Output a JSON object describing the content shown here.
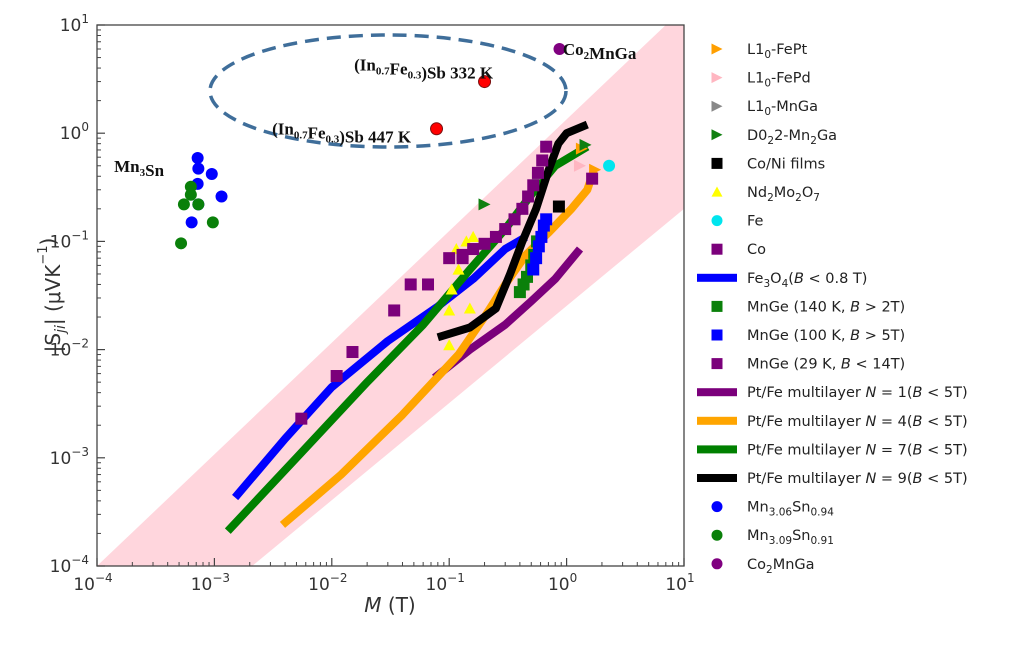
{
  "chart_data": {
    "type": "scatter",
    "title": "",
    "xlabel": "M (T)",
    "ylabel": "|S_ji| (μVK⁻¹)",
    "xscale": "log",
    "yscale": "log",
    "xlim": [
      0.0001,
      10
    ],
    "ylim": [
      0.0001,
      10
    ],
    "x_ticks": [
      {
        "value": 0.0001,
        "base": "10",
        "exp": "−4"
      },
      {
        "value": 0.001,
        "base": "10",
        "exp": "−3"
      },
      {
        "value": 0.01,
        "base": "10",
        "exp": "−2"
      },
      {
        "value": 0.1,
        "base": "10",
        "exp": "−1"
      },
      {
        "value": 1,
        "base": "10",
        "exp": "0"
      },
      {
        "value": 10,
        "base": "10",
        "exp": "1"
      }
    ],
    "y_ticks": [
      {
        "value": 0.0001,
        "base": "10",
        "exp": "−4"
      },
      {
        "value": 0.001,
        "base": "10",
        "exp": "−3"
      },
      {
        "value": 0.01,
        "base": "10",
        "exp": "−2"
      },
      {
        "value": 0.1,
        "base": "10",
        "exp": "−1"
      },
      {
        "value": 1,
        "base": "10",
        "exp": "0"
      },
      {
        "value": 10,
        "base": "10",
        "exp": "1"
      }
    ],
    "grid": false,
    "legend_position": "outside-right",
    "band": {
      "color": "#ffd6dd",
      "upper": [
        [
          0.0001,
          0.0001
        ],
        [
          7.0,
          10
        ]
      ],
      "lower": [
        [
          0.0021,
          0.0001
        ],
        [
          10,
          0.2
        ]
      ]
    },
    "series": [
      {
        "name": "L1₀-FePt",
        "marker": "triangle-right",
        "color": "#ff9f00",
        "points": [
          [
            1.35,
            0.72
          ],
          [
            1.75,
            0.46
          ]
        ]
      },
      {
        "name": "L1₀-FePd",
        "marker": "triangle-right",
        "color": "#ffb6c1",
        "points": [
          [
            1.3,
            0.5
          ]
        ]
      },
      {
        "name": "L1₀-MnGa",
        "marker": "triangle-right",
        "color": "#888888",
        "points": [
          [
            0.57,
            0.39
          ]
        ]
      },
      {
        "name": "D0₂ 2-Mn₂Ga",
        "marker": "triangle-right",
        "color": "#108010",
        "points": [
          [
            0.2,
            0.22
          ],
          [
            1.45,
            0.78
          ]
        ]
      },
      {
        "name": "Co/Ni films",
        "marker": "square",
        "color": "#000000",
        "points": [
          [
            0.86,
            0.21
          ]
        ]
      },
      {
        "name": "Nd₂Mo₂O₇",
        "marker": "triangle-up",
        "color": "#ffff00",
        "points": [
          [
            0.1,
            0.011
          ],
          [
            0.1,
            0.023
          ],
          [
            0.105,
            0.036
          ],
          [
            0.12,
            0.055
          ],
          [
            0.15,
            0.024
          ],
          [
            0.115,
            0.085
          ],
          [
            0.14,
            0.1
          ],
          [
            0.16,
            0.11
          ]
        ]
      },
      {
        "name": "Fe",
        "marker": "circle",
        "color": "#00e5ee",
        "points": [
          [
            2.3,
            0.5
          ]
        ]
      },
      {
        "name": "Co",
        "marker": "square",
        "color": "#7b007b",
        "points": [
          [
            0.0055,
            0.0023
          ],
          [
            0.011,
            0.0057
          ],
          [
            0.015,
            0.0095
          ],
          [
            0.034,
            0.023
          ],
          [
            0.047,
            0.04
          ],
          [
            0.066,
            0.04
          ],
          [
            0.1,
            0.07
          ],
          [
            0.13,
            0.07
          ],
          [
            1.65,
            0.38
          ]
        ]
      },
      {
        "name": "Fe₃O₄(B < 0.8 T)",
        "type": "line",
        "color": "#0000ff",
        "points": [
          [
            0.0015,
            0.00043
          ],
          [
            0.004,
            0.0015
          ],
          [
            0.01,
            0.0045
          ],
          [
            0.03,
            0.012
          ],
          [
            0.08,
            0.025
          ],
          [
            0.16,
            0.045
          ],
          [
            0.3,
            0.085
          ],
          [
            0.45,
            0.11
          ]
        ]
      },
      {
        "name": "MnGe (140 K, B > 2T)",
        "marker": "square",
        "color": "#0a800a",
        "points": [
          [
            0.4,
            0.034
          ],
          [
            0.43,
            0.04
          ],
          [
            0.46,
            0.047
          ],
          [
            0.5,
            0.06
          ],
          [
            0.53,
            0.075
          ],
          [
            0.56,
            0.1
          ]
        ]
      },
      {
        "name": "MnGe (100 K, B > 5T)",
        "marker": "square",
        "color": "#0000ff",
        "points": [
          [
            0.52,
            0.055
          ],
          [
            0.55,
            0.07
          ],
          [
            0.58,
            0.09
          ],
          [
            0.61,
            0.11
          ],
          [
            0.64,
            0.14
          ],
          [
            0.67,
            0.16
          ]
        ]
      },
      {
        "name": "MnGe (29 K, B < 14T)",
        "marker": "square",
        "color": "#7b007b",
        "points": [
          [
            0.13,
            0.075
          ],
          [
            0.16,
            0.085
          ],
          [
            0.2,
            0.095
          ],
          [
            0.25,
            0.11
          ],
          [
            0.3,
            0.13
          ],
          [
            0.36,
            0.16
          ],
          [
            0.42,
            0.2
          ],
          [
            0.47,
            0.26
          ],
          [
            0.52,
            0.33
          ],
          [
            0.57,
            0.43
          ],
          [
            0.62,
            0.56
          ],
          [
            0.67,
            0.75
          ]
        ]
      },
      {
        "name": "Pt/Fe multilayer N = 1(B < 5T)",
        "type": "line",
        "color": "#7b007b",
        "points": [
          [
            0.075,
            0.0055
          ],
          [
            0.15,
            0.01
          ],
          [
            0.3,
            0.017
          ],
          [
            0.5,
            0.028
          ],
          [
            0.8,
            0.045
          ],
          [
            1.3,
            0.085
          ]
        ]
      },
      {
        "name": "Pt/Fe multilayer N = 4(B < 5T)",
        "type": "line",
        "color": "#ffa500",
        "points": [
          [
            0.0038,
            0.00024
          ],
          [
            0.012,
            0.0007
          ],
          [
            0.04,
            0.0025
          ],
          [
            0.12,
            0.009
          ],
          [
            0.2,
            0.02
          ],
          [
            0.3,
            0.04
          ],
          [
            0.45,
            0.075
          ],
          [
            0.7,
            0.12
          ],
          [
            1.1,
            0.2
          ],
          [
            1.5,
            0.3
          ],
          [
            1.7,
            0.45
          ]
        ]
      },
      {
        "name": "Pt/Fe multilayer N = 7(B < 5T)",
        "type": "line",
        "color": "#008000",
        "points": [
          [
            0.0013,
            0.00021
          ],
          [
            0.005,
            0.001
          ],
          [
            0.02,
            0.005
          ],
          [
            0.06,
            0.017
          ],
          [
            0.15,
            0.055
          ],
          [
            0.3,
            0.13
          ],
          [
            0.5,
            0.27
          ],
          [
            0.8,
            0.5
          ],
          [
            1.5,
            0.75
          ]
        ]
      },
      {
        "name": "Pt/Fe multilayer N = 9(B < 5T)",
        "type": "line",
        "color": "#000000",
        "points": [
          [
            0.08,
            0.013
          ],
          [
            0.15,
            0.016
          ],
          [
            0.25,
            0.024
          ],
          [
            0.33,
            0.05
          ],
          [
            0.42,
            0.1
          ],
          [
            0.55,
            0.2
          ],
          [
            0.7,
            0.45
          ],
          [
            0.85,
            0.8
          ],
          [
            1.0,
            1.0
          ],
          [
            1.5,
            1.2
          ]
        ]
      },
      {
        "name": "Mn₃.₀₆Sn₀.₉₄",
        "marker": "circle",
        "color": "#0000ff",
        "points": [
          [
            0.00072,
            0.59
          ],
          [
            0.00073,
            0.47
          ],
          [
            0.00095,
            0.42
          ],
          [
            0.00072,
            0.34
          ],
          [
            0.00115,
            0.26
          ],
          [
            0.00073,
            0.22
          ],
          [
            0.00064,
            0.15
          ]
        ]
      },
      {
        "name": "Mn₃.₀₉Sn₀.₉₁",
        "marker": "circle",
        "color": "#0a800a",
        "points": [
          [
            0.00063,
            0.32
          ],
          [
            0.00063,
            0.27
          ],
          [
            0.00055,
            0.22
          ],
          [
            0.00073,
            0.22
          ],
          [
            0.00097,
            0.15
          ],
          [
            0.00052,
            0.096
          ]
        ]
      },
      {
        "name": "Co₂MnGa",
        "marker": "circle",
        "color": "#800080",
        "points": [
          [
            0.87,
            6.0
          ]
        ]
      },
      {
        "name": "(In0.7Fe0.3)Sb",
        "marker": "circle",
        "color": "#ff0000",
        "in_legend": false,
        "points": [
          [
            0.2,
            3.0
          ],
          [
            0.078,
            1.1
          ]
        ]
      }
    ],
    "annotations": [
      {
        "text": "Mn",
        "sub": "3",
        "text2": "Sn",
        "sub2": "",
        "text3": "",
        "x": 0.00014,
        "y": 0.5
      },
      {
        "text": "(In",
        "sub": "0.7",
        "text2": "Fe",
        "sub2": "0.3",
        "text3": ")Sb 332 K",
        "x": 0.0155,
        "y": 4.3
      },
      {
        "text": "(In",
        "sub": "0.7",
        "text2": "Fe",
        "sub2": "0.3",
        "text3": ")Sb 447 K",
        "x": 0.0031,
        "y": 1.1
      },
      {
        "text": "Co",
        "sub": "2",
        "text2": "MnGa",
        "sub2": "",
        "text3": "",
        "x": 0.93,
        "y": 6.0
      }
    ],
    "ellipse": {
      "center": [
        0.027,
        2.2
      ],
      "color": "#3f6e9a",
      "style": "dashed"
    }
  },
  "legend": [
    {
      "kind": "triangle-right",
      "color": "#ff9f00",
      "parts": [
        [
          "L1",
          ""
        ],
        [
          "0",
          "sub"
        ],
        [
          "-FePt",
          ""
        ]
      ]
    },
    {
      "kind": "triangle-right",
      "color": "#ffb6c1",
      "parts": [
        [
          "L1",
          ""
        ],
        [
          "0",
          "sub"
        ],
        [
          "-FePd",
          ""
        ]
      ]
    },
    {
      "kind": "triangle-right",
      "color": "#888888",
      "parts": [
        [
          "L1",
          ""
        ],
        [
          "0",
          "sub"
        ],
        [
          "-MnGa",
          ""
        ]
      ]
    },
    {
      "kind": "triangle-right",
      "color": "#108010",
      "parts": [
        [
          "D0",
          ""
        ],
        [
          "2",
          "sub"
        ],
        [
          "2-Mn",
          ""
        ],
        [
          "2",
          "sub"
        ],
        [
          "Ga",
          ""
        ]
      ]
    },
    {
      "kind": "square",
      "color": "#000000",
      "parts": [
        [
          "Co/Ni films",
          ""
        ]
      ]
    },
    {
      "kind": "triangle-up",
      "color": "#ffff00",
      "parts": [
        [
          "Nd",
          ""
        ],
        [
          "2",
          "sub"
        ],
        [
          "Mo",
          ""
        ],
        [
          "2",
          "sub"
        ],
        [
          "O",
          ""
        ],
        [
          "7",
          "sub"
        ]
      ]
    },
    {
      "kind": "circle",
      "color": "#00e5ee",
      "parts": [
        [
          "Fe",
          ""
        ]
      ]
    },
    {
      "kind": "square",
      "color": "#7b007b",
      "parts": [
        [
          "Co",
          ""
        ]
      ]
    },
    {
      "kind": "line",
      "color": "#0000ff",
      "parts": [
        [
          "Fe",
          ""
        ],
        [
          "3",
          "sub"
        ],
        [
          "O",
          ""
        ],
        [
          "4",
          "sub"
        ],
        [
          "(",
          ""
        ],
        [
          "B",
          "it"
        ],
        [
          " < 0.8 T)",
          ""
        ]
      ]
    },
    {
      "kind": "square",
      "color": "#0a800a",
      "parts": [
        [
          "MnGe (140 K, ",
          ""
        ],
        [
          "B",
          "it"
        ],
        [
          " > 2T)",
          ""
        ]
      ]
    },
    {
      "kind": "square",
      "color": "#0000ff",
      "parts": [
        [
          "MnGe (100 K, ",
          ""
        ],
        [
          "B",
          "it"
        ],
        [
          " > 5T)",
          ""
        ]
      ]
    },
    {
      "kind": "square",
      "color": "#7b007b",
      "parts": [
        [
          "MnGe (29 K, ",
          ""
        ],
        [
          "B",
          "it"
        ],
        [
          " < 14T)",
          ""
        ]
      ]
    },
    {
      "kind": "line",
      "color": "#7b007b",
      "parts": [
        [
          "Pt/Fe multilayer ",
          ""
        ],
        [
          "N",
          "it"
        ],
        [
          " = 1(",
          ""
        ],
        [
          "B",
          "it"
        ],
        [
          " < 5T)",
          ""
        ]
      ]
    },
    {
      "kind": "line",
      "color": "#ffa500",
      "parts": [
        [
          "Pt/Fe multilayer ",
          ""
        ],
        [
          "N",
          "it"
        ],
        [
          " = 4(",
          ""
        ],
        [
          "B",
          "it"
        ],
        [
          " < 5T)",
          ""
        ]
      ]
    },
    {
      "kind": "line",
      "color": "#008000",
      "parts": [
        [
          "Pt/Fe multilayer ",
          ""
        ],
        [
          "N",
          "it"
        ],
        [
          " = 7(",
          ""
        ],
        [
          "B",
          "it"
        ],
        [
          " < 5T)",
          ""
        ]
      ]
    },
    {
      "kind": "line",
      "color": "#000000",
      "parts": [
        [
          "Pt/Fe multilayer ",
          ""
        ],
        [
          "N",
          "it"
        ],
        [
          " = 9(",
          ""
        ],
        [
          "B",
          "it"
        ],
        [
          " < 5T)",
          ""
        ]
      ]
    },
    {
      "kind": "circle",
      "color": "#0000ff",
      "parts": [
        [
          "Mn",
          ""
        ],
        [
          "3.06",
          "sub"
        ],
        [
          "Sn",
          ""
        ],
        [
          "0.94",
          "sub"
        ]
      ]
    },
    {
      "kind": "circle",
      "color": "#0a800a",
      "parts": [
        [
          "Mn",
          ""
        ],
        [
          "3.09",
          "sub"
        ],
        [
          "Sn",
          ""
        ],
        [
          "0.91",
          "sub"
        ]
      ]
    },
    {
      "kind": "circle",
      "color": "#800080",
      "parts": [
        [
          "Co",
          ""
        ],
        [
          "2",
          "sub"
        ],
        [
          "MnGa",
          ""
        ]
      ]
    }
  ]
}
